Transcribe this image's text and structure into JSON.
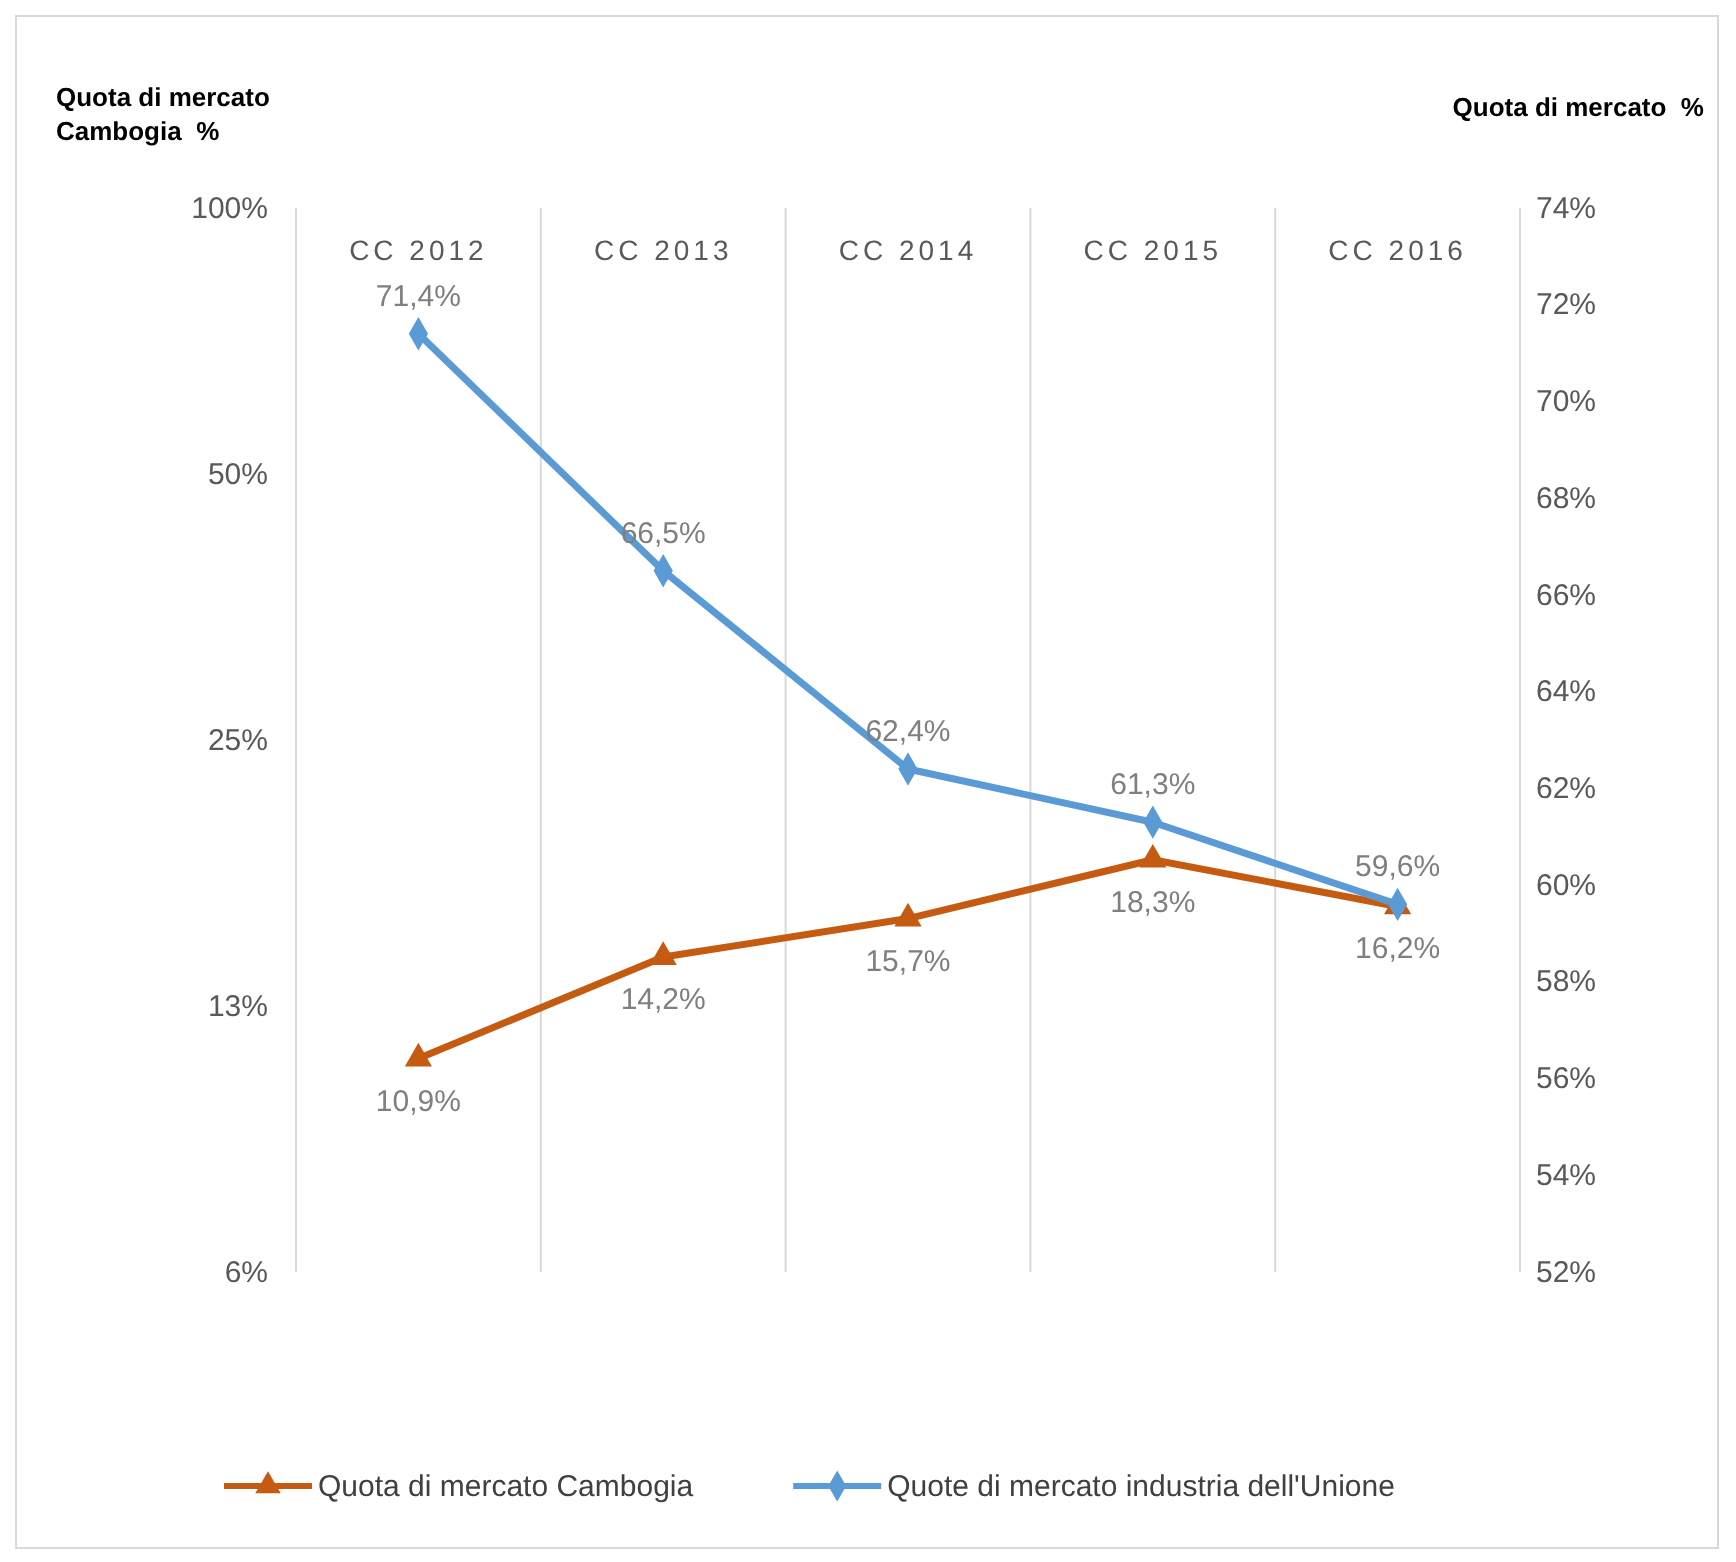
{
  "chart_data": {
    "type": "line",
    "categories": [
      "CC 2012",
      "CC 2013",
      "CC 2014",
      "CC 2015",
      "CC 2016"
    ],
    "ylabel": "Quota di mercato Cambogia  %",
    "y2label": "Quota di mercato  %",
    "log": "y",
    "ylim": [
      6.25,
      100
    ],
    "yticks": [
      {
        "value": 6.25,
        "label": "6%"
      },
      {
        "value": 12.5,
        "label": "13%"
      },
      {
        "value": 25,
        "label": "25%"
      },
      {
        "value": 50,
        "label": "50%"
      },
      {
        "value": 100,
        "label": "100%"
      }
    ],
    "y2lim": [
      52,
      74
    ],
    "y2ticks": [
      {
        "value": 52,
        "label": "52%"
      },
      {
        "value": 54,
        "label": "54%"
      },
      {
        "value": 56,
        "label": "56%"
      },
      {
        "value": 58,
        "label": "58%"
      },
      {
        "value": 60,
        "label": "60%"
      },
      {
        "value": 62,
        "label": "62%"
      },
      {
        "value": 64,
        "label": "64%"
      },
      {
        "value": 66,
        "label": "66%"
      },
      {
        "value": 68,
        "label": "68%"
      },
      {
        "value": 70,
        "label": "70%"
      },
      {
        "value": 72,
        "label": "72%"
      },
      {
        "value": 74,
        "label": "74%"
      }
    ],
    "grid": "x",
    "legend": "bottom",
    "line_style": "solid",
    "series": [
      {
        "name": "Quota di mercato Cambogia",
        "color": "#c55a11",
        "marker": "triangle",
        "values": [
          10.9,
          14.2,
          15.7,
          18.3,
          16.2
        ],
        "value_labels": [
          "10,9%",
          "14,2%",
          "15,7%",
          "18,3%",
          "16,2%"
        ]
      },
      {
        "name": "Quote di mercato industria dell'Unione",
        "color": "#5b9bd5",
        "marker": "diamond",
        "axis": "y2",
        "values": [
          71.4,
          66.5,
          62.4,
          61.3,
          59.6
        ],
        "value_labels": [
          "71,4%",
          "66,5%",
          "62,4%",
          "61,3%",
          "59,6%"
        ]
      }
    ]
  }
}
